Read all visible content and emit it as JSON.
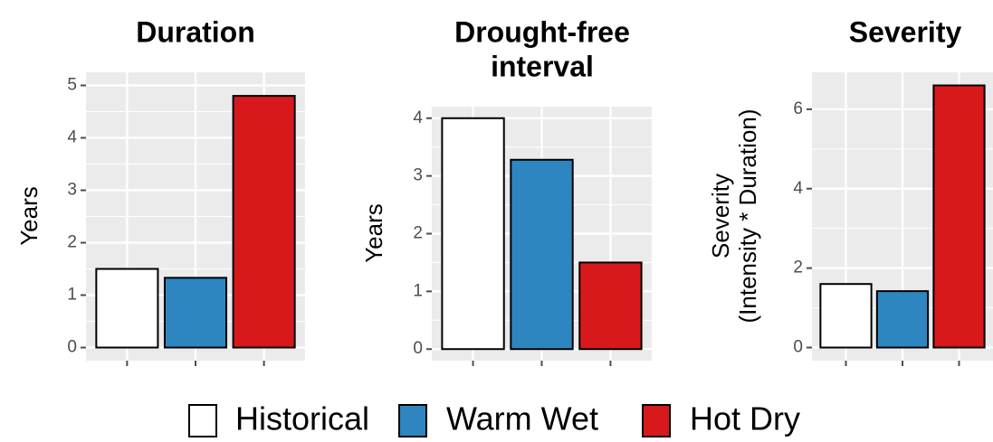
{
  "chart_data": [
    {
      "type": "bar",
      "title": [
        "Duration"
      ],
      "ylabel": [
        "Years"
      ],
      "categories": [
        "Historical",
        "Warm Wet",
        "Hot Dry"
      ],
      "values": [
        1.5,
        1.33,
        4.8
      ],
      "ylim": [
        0,
        5
      ],
      "yticks": [
        0,
        1,
        2,
        3,
        4,
        5
      ],
      "grid": true
    },
    {
      "type": "bar",
      "title": [
        "Drought-free",
        "interval"
      ],
      "ylabel": [
        "Years"
      ],
      "categories": [
        "Historical",
        "Warm Wet",
        "Hot Dry"
      ],
      "values": [
        4.0,
        3.28,
        1.5
      ],
      "ylim": [
        0,
        4
      ],
      "yticks": [
        0,
        1,
        2,
        3,
        4
      ],
      "grid": true
    },
    {
      "type": "bar",
      "title": [
        "Severity"
      ],
      "ylabel": [
        "Severity",
        "(Intensity * Duration)"
      ],
      "categories": [
        "Historical",
        "Warm Wet",
        "Hot Dry"
      ],
      "values": [
        1.6,
        1.42,
        6.6
      ],
      "ylim": [
        0,
        6.6
      ],
      "yticks": [
        0,
        2,
        4,
        6
      ],
      "grid": true
    }
  ],
  "legend": {
    "placement": "bottom",
    "items": [
      {
        "label": "Historical",
        "color": "#ffffff"
      },
      {
        "label": "Warm Wet",
        "color": "#2e86c1"
      },
      {
        "label": "Hot Dry",
        "color": "#d7191c"
      }
    ]
  },
  "style": {
    "panel_background": "#ebebeb",
    "grid_color": "#ffffff",
    "bar_outline": "#000000",
    "tick_color": "#4d4d4d"
  }
}
